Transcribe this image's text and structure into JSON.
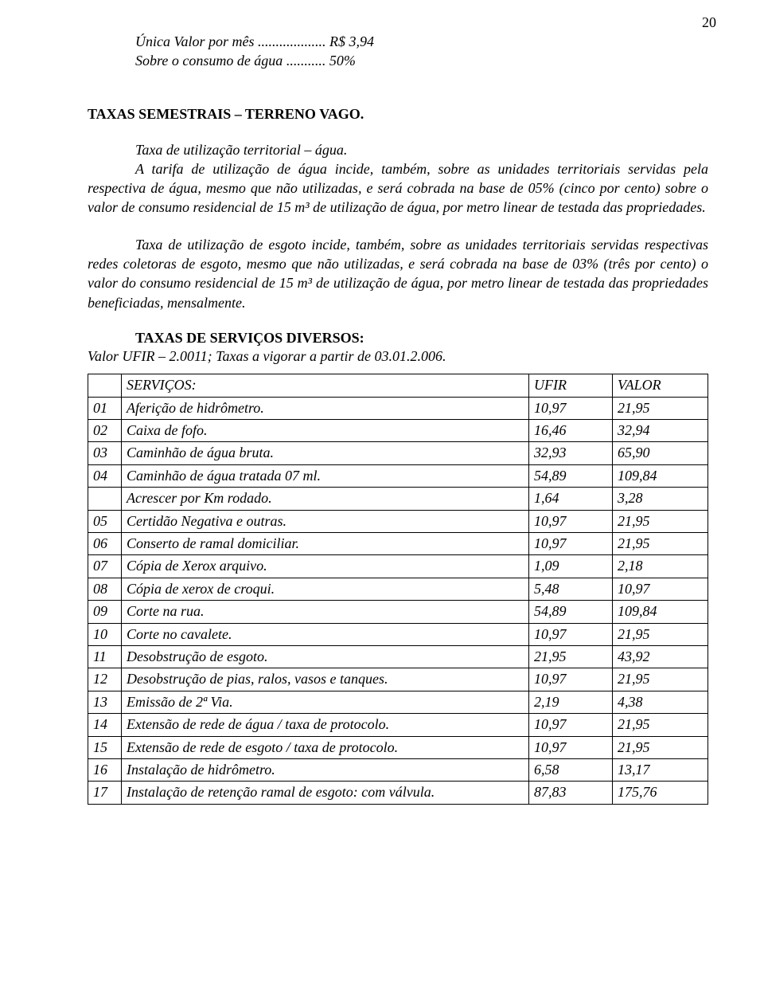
{
  "page_number": "20",
  "header": {
    "line1_label": "Única Valor por mês",
    "line1_dots": "...................",
    "line1_value": "R$   3,94",
    "line2_label": "Sobre o consumo de água",
    "line2_dots": "...........",
    "line2_value": "50%"
  },
  "section1": {
    "title": "TAXAS SEMESTRAIS – TERRENO VAGO.",
    "sub1": "Taxa de utilização territorial – água.",
    "para1": "A tarifa de utilização de água incide, também, sobre as unidades territoriais servidas pela respectiva de água, mesmo que não utilizadas, e será cobrada na base de 05% (cinco por cento) sobre o valor de consumo residencial de 15 m³ de utilização de água, por metro linear de testada das propriedades.",
    "para2": "Taxa de utilização de esgoto incide, também, sobre as unidades territoriais servidas respectivas redes coletoras de esgoto, mesmo que não utilizadas, e será cobrada na base de 03% (três por cento) o valor do consumo residencial de 15 m³  de utilização de água, por metro linear de testada das propriedades beneficiadas, mensalmente."
  },
  "section2": {
    "title": "TAXAS DE SERVIÇOS DIVERSOS:",
    "subtitle": "Valor UFIR – 2.0011; Taxas a vigorar a partir de 03.01.2.006."
  },
  "table": {
    "header": {
      "col1": "",
      "col2": "SERVIÇOS:",
      "col3": "UFIR",
      "col4": "VALOR"
    },
    "rows": [
      {
        "num": "01",
        "svc": "Aferição de hidrômetro.",
        "ufir": "10,97",
        "val": "21,95"
      },
      {
        "num": "02",
        "svc": "Caixa de fofo.",
        "ufir": "16,46",
        "val": "32,94"
      },
      {
        "num": "03",
        "svc": "Caminhão de água bruta.",
        "ufir": "32,93",
        "val": "65,90"
      },
      {
        "num": "04",
        "svc": "Caminhão de água tratada 07 ml.",
        "ufir": "54,89",
        "val": "109,84"
      },
      {
        "num": "",
        "svc": "Acrescer por Km rodado.",
        "ufir": "1,64",
        "val": "3,28"
      },
      {
        "num": "05",
        "svc": "Certidão Negativa e outras.",
        "ufir": "10,97",
        "val": "21,95"
      },
      {
        "num": "06",
        "svc": "Conserto de ramal domiciliar.",
        "ufir": "10,97",
        "val": "21,95"
      },
      {
        "num": "07",
        "svc": "Cópia de Xerox arquivo.",
        "ufir": "1,09",
        "val": "2,18"
      },
      {
        "num": "08",
        "svc": "Cópia de xerox de croqui.",
        "ufir": "5,48",
        "val": "10,97"
      },
      {
        "num": "09",
        "svc": "Corte na rua.",
        "ufir": "54,89",
        "val": "109,84"
      },
      {
        "num": "10",
        "svc": "Corte no cavalete.",
        "ufir": "10,97",
        "val": "21,95"
      },
      {
        "num": "11",
        "svc": "Desobstrução de esgoto.",
        "ufir": "21,95",
        "val": "43,92"
      },
      {
        "num": "12",
        "svc": "Desobstrução de pias, ralos, vasos e tanques.",
        "ufir": "10,97",
        "val": "21,95"
      },
      {
        "num": "13",
        "svc": "Emissão de 2ª Via.",
        "ufir": "2,19",
        "val": "4,38"
      },
      {
        "num": "14",
        "svc": "Extensão de rede de água / taxa de protocolo.",
        "ufir": "10,97",
        "val": "21,95"
      },
      {
        "num": "15",
        "svc": "Extensão de rede de esgoto / taxa de protocolo.",
        "ufir": "10,97",
        "val": "21,95"
      },
      {
        "num": "16",
        "svc": "Instalação de hidrômetro.",
        "ufir": "6,58",
        "val": "13,17"
      },
      {
        "num": "17",
        "svc": "Instalação de retenção ramal de esgoto: com válvula.",
        "ufir": "87,83",
        "val": "175,76"
      }
    ]
  }
}
